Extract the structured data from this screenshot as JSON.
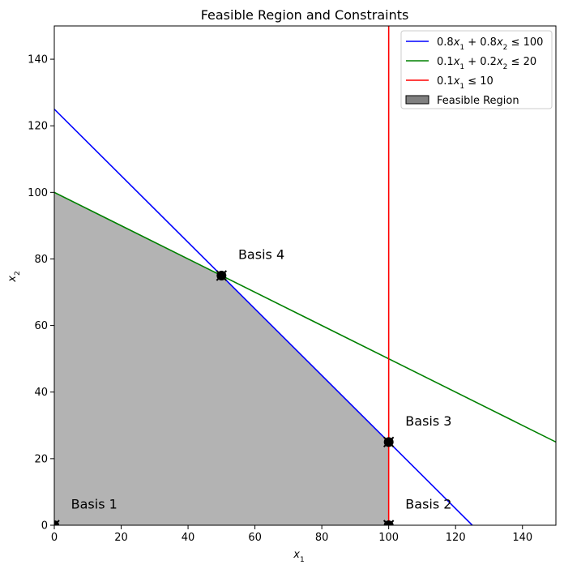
{
  "chart_data": {
    "type": "line",
    "title": "Feasible Region and Constraints",
    "xlabel": "x",
    "xlabel_sub": "1",
    "ylabel": "x",
    "ylabel_sub": "2",
    "xlim": [
      0,
      150
    ],
    "ylim": [
      0,
      150
    ],
    "xticks": [
      0,
      20,
      40,
      60,
      80,
      100,
      120,
      140
    ],
    "yticks": [
      0,
      20,
      40,
      60,
      80,
      100,
      120,
      140
    ],
    "grid": false,
    "legend_position": "top-right",
    "series": [
      {
        "name": "0.8x1 + 0.8x2 ≤ 100",
        "legend_parts": [
          [
            "0.8",
            ""
          ],
          [
            "x",
            "1"
          ],
          [
            " + 0.8",
            ""
          ],
          [
            "x",
            "2"
          ],
          [
            " ≤ 100",
            ""
          ]
        ],
        "color": "#0000ff",
        "x": [
          0,
          125
        ],
        "y": [
          125,
          0
        ]
      },
      {
        "name": "0.1x1 + 0.2x2 ≤ 20",
        "legend_parts": [
          [
            "0.1",
            ""
          ],
          [
            "x",
            "1"
          ],
          [
            " + 0.2",
            ""
          ],
          [
            "x",
            "2"
          ],
          [
            " ≤ 20",
            ""
          ]
        ],
        "color": "#008000",
        "x": [
          0,
          150
        ],
        "y": [
          100,
          25
        ]
      },
      {
        "name": "0.1x1 ≤ 10",
        "legend_parts": [
          [
            "0.1",
            ""
          ],
          [
            "x",
            "1"
          ],
          [
            " ≤ 10",
            ""
          ]
        ],
        "color": "#ff0000",
        "x": [
          100,
          100
        ],
        "y": [
          0,
          150
        ]
      }
    ],
    "feasible_region": {
      "name": "Feasible Region",
      "color": "#808080",
      "vertices": [
        [
          0,
          0
        ],
        [
          0,
          100
        ],
        [
          50,
          75
        ],
        [
          100,
          25
        ],
        [
          100,
          0
        ]
      ]
    },
    "basis_points": [
      {
        "label": "Basis 1",
        "x": 0,
        "y": 0,
        "label_x": 5,
        "label_y": 5
      },
      {
        "label": "Basis 2",
        "x": 100,
        "y": 0,
        "label_x": 105,
        "label_y": 5
      },
      {
        "label": "Basis 3",
        "x": 100,
        "y": 25,
        "label_x": 105,
        "label_y": 30
      },
      {
        "label": "Basis 4",
        "x": 50,
        "y": 75,
        "label_x": 55,
        "label_y": 80
      }
    ]
  }
}
